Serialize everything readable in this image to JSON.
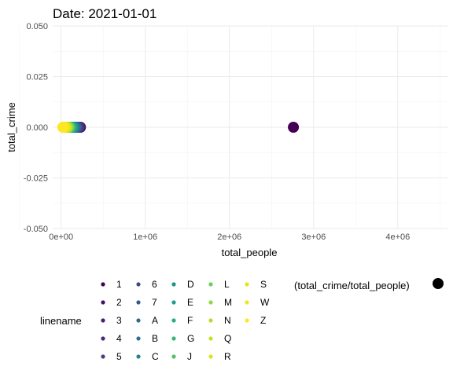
{
  "chart_data": {
    "type": "scatter",
    "title": "Date: 2021-01-01",
    "xlabel": "total_people",
    "ylabel": "total_crime",
    "xlim": [
      -100000,
      4600000
    ],
    "ylim": [
      -0.05,
      0.05
    ],
    "x_ticks": [
      0,
      1000000,
      2000000,
      3000000,
      4000000
    ],
    "x_tick_labels": [
      "0e+00",
      "1e+06",
      "2e+06",
      "3e+06",
      "4e+06"
    ],
    "y_ticks": [
      -0.05,
      -0.025,
      0,
      0.025,
      0.05
    ],
    "y_tick_labels": [
      "-0.050",
      "-0.025",
      "0.000",
      "0.025",
      "0.050"
    ],
    "grid": true,
    "points": [
      {
        "line": "1",
        "x": 2760000,
        "y": 0,
        "color": "#440154"
      },
      {
        "line": "2",
        "x": 230000,
        "y": 0,
        "color": "#471063"
      },
      {
        "line": "3",
        "x": 220000,
        "y": 0,
        "color": "#481d6f"
      },
      {
        "line": "4",
        "x": 210000,
        "y": 0,
        "color": "#472a7a"
      },
      {
        "line": "5",
        "x": 200000,
        "y": 0,
        "color": "#433e85"
      },
      {
        "line": "6",
        "x": 190000,
        "y": 0,
        "color": "#3e4989"
      },
      {
        "line": "7",
        "x": 180000,
        "y": 0,
        "color": "#38588c"
      },
      {
        "line": "A",
        "x": 170000,
        "y": 0,
        "color": "#31688e"
      },
      {
        "line": "B",
        "x": 160000,
        "y": 0,
        "color": "#2c728e"
      },
      {
        "line": "C",
        "x": 150000,
        "y": 0,
        "color": "#26828e"
      },
      {
        "line": "D",
        "x": 140000,
        "y": 0,
        "color": "#21918c"
      },
      {
        "line": "E",
        "x": 130000,
        "y": 0,
        "color": "#1f9e89"
      },
      {
        "line": "F",
        "x": 120000,
        "y": 0,
        "color": "#25ac82"
      },
      {
        "line": "G",
        "x": 110000,
        "y": 0,
        "color": "#35b779"
      },
      {
        "line": "J",
        "x": 100000,
        "y": 0,
        "color": "#4ec36b"
      },
      {
        "line": "L",
        "x": 90000,
        "y": 0,
        "color": "#6ccd5a"
      },
      {
        "line": "M",
        "x": 80000,
        "y": 0,
        "color": "#8fd744"
      },
      {
        "line": "N",
        "x": 70000,
        "y": 0,
        "color": "#b5de2b"
      },
      {
        "line": "Q",
        "x": 60000,
        "y": 0,
        "color": "#c8e020"
      },
      {
        "line": "R",
        "x": 50000,
        "y": 0,
        "color": "#dde318"
      },
      {
        "line": "S",
        "x": 40000,
        "y": 0,
        "color": "#e8e419"
      },
      {
        "line": "W",
        "x": 30000,
        "y": 0,
        "color": "#f1e51d"
      },
      {
        "line": "Z",
        "x": 20000,
        "y": 0,
        "color": "#fde725"
      }
    ],
    "legend": {
      "title": "linename",
      "placement": "bottom",
      "entries": [
        {
          "label": "1",
          "color": "#440154"
        },
        {
          "label": "2",
          "color": "#471063"
        },
        {
          "label": "3",
          "color": "#481d6f"
        },
        {
          "label": "4",
          "color": "#472a7a"
        },
        {
          "label": "5",
          "color": "#433e85"
        },
        {
          "label": "6",
          "color": "#3e4989"
        },
        {
          "label": "7",
          "color": "#38588c"
        },
        {
          "label": "A",
          "color": "#31688e"
        },
        {
          "label": "B",
          "color": "#2c728e"
        },
        {
          "label": "C",
          "color": "#26828e"
        },
        {
          "label": "D",
          "color": "#21918c"
        },
        {
          "label": "E",
          "color": "#1f9e89"
        },
        {
          "label": "F",
          "color": "#25ac82"
        },
        {
          "label": "G",
          "color": "#35b779"
        },
        {
          "label": "J",
          "color": "#4ec36b"
        },
        {
          "label": "L",
          "color": "#6ccd5a"
        },
        {
          "label": "M",
          "color": "#8fd744"
        },
        {
          "label": "N",
          "color": "#b5de2b"
        },
        {
          "label": "Q",
          "color": "#c8e020"
        },
        {
          "label": "R",
          "color": "#dde318"
        },
        {
          "label": "S",
          "color": "#e8e419"
        },
        {
          "label": "W",
          "color": "#f1e51d"
        },
        {
          "label": "Z",
          "color": "#fde725"
        }
      ]
    },
    "size_legend": {
      "title": "(total_crime/total_people)",
      "color": "#000000"
    }
  }
}
